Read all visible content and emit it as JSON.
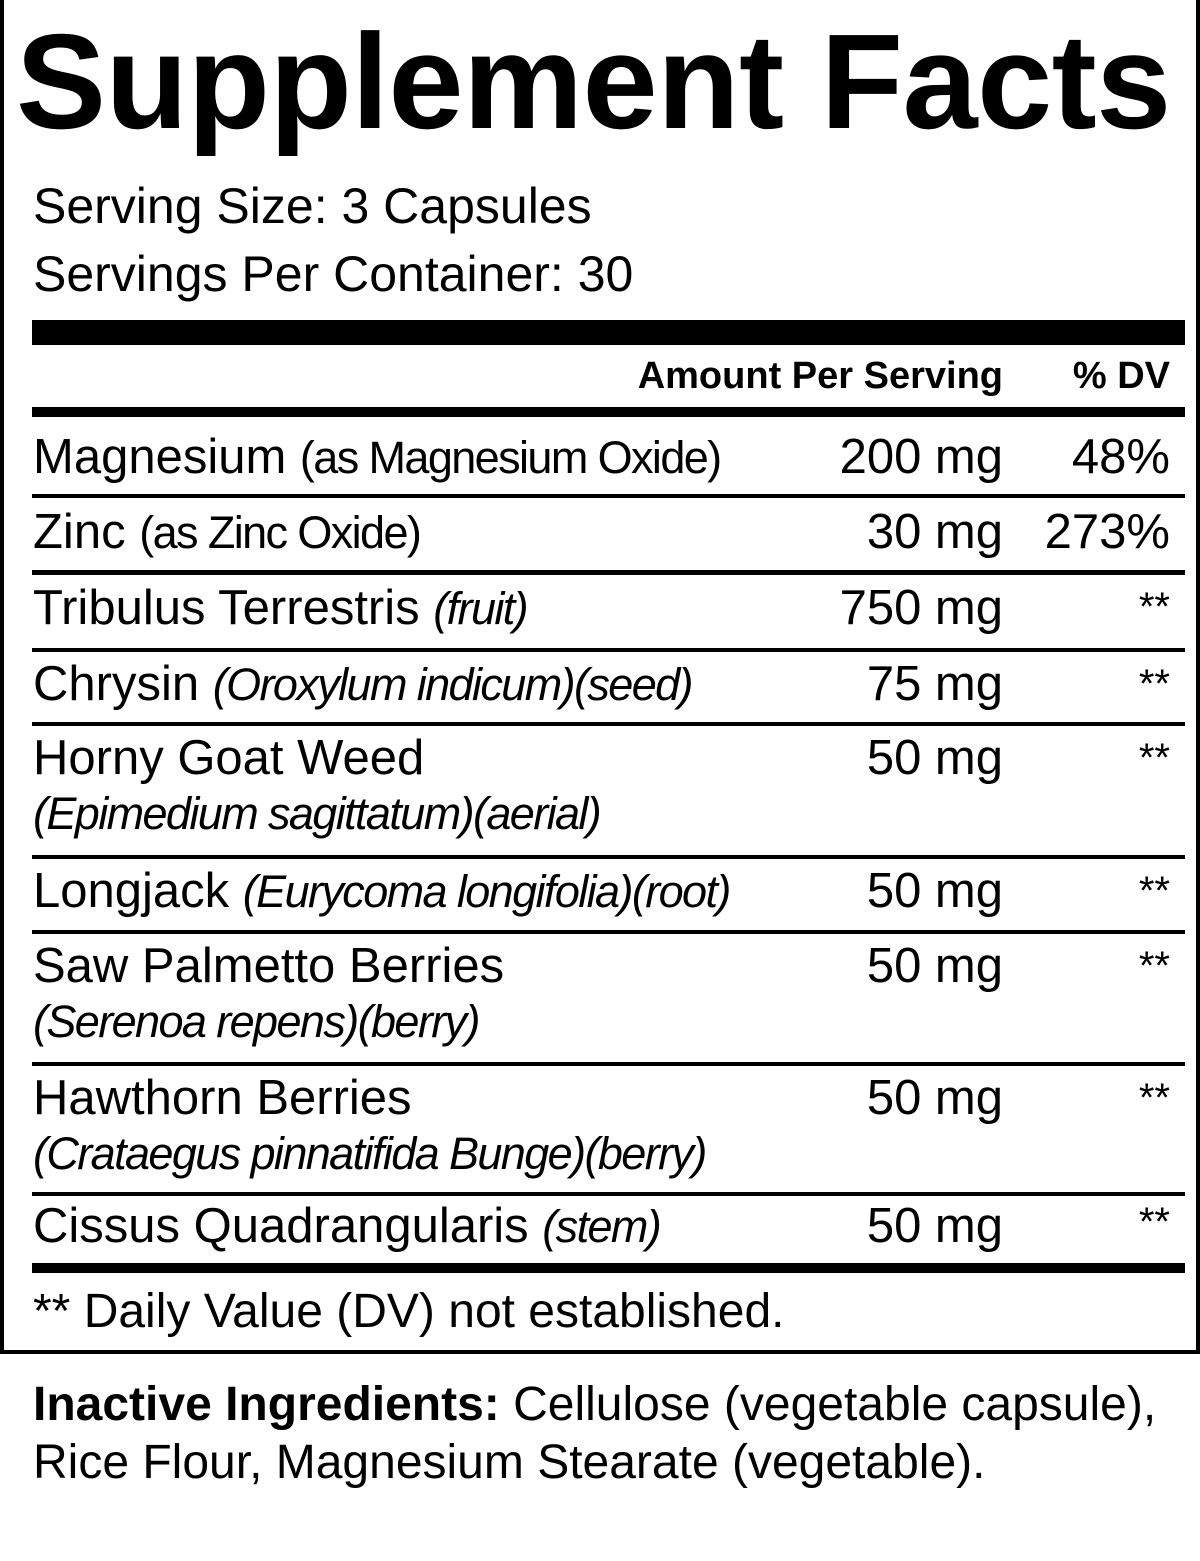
{
  "title": "Supplement Facts",
  "serving_size": "Serving Size: 3 Capsules",
  "servings_per_container": "Servings Per Container: 30",
  "header": {
    "amount": "Amount Per Serving",
    "dv": "% DV"
  },
  "rows": [
    {
      "name": "Magnesium",
      "detail": "(as Magnesium Oxide)",
      "amount": "200 mg",
      "dv": "48%"
    },
    {
      "name": "Zinc",
      "detail": "(as Zinc Oxide)",
      "amount": "30 mg",
      "dv": "273%"
    },
    {
      "name": "Tribulus Terrestris",
      "detail": "(fruit)",
      "amount": "750 mg",
      "dv": "**"
    },
    {
      "name": "Chrysin",
      "detail": "(Oroxylum indicum)(seed)",
      "amount": "75 mg",
      "dv": "**"
    },
    {
      "name": "Horny Goat Weed",
      "detail": "(Epimedium sagittatum)(aerial)",
      "amount": "50 mg",
      "dv": "**"
    },
    {
      "name": "Longjack",
      "detail": "(Eurycoma longifolia)(root)",
      "amount": "50 mg",
      "dv": "**"
    },
    {
      "name": "Saw Palmetto Berries",
      "detail": "(Serenoa repens)(berry)",
      "amount": "50 mg",
      "dv": "**"
    },
    {
      "name": "Hawthorn Berries",
      "detail": "(Crataegus pinnatifida Bunge)(berry)",
      "amount": "50 mg",
      "dv": "**"
    },
    {
      "name": "Cissus Quadrangularis",
      "detail": "(stem)",
      "amount": "50 mg",
      "dv": "**"
    }
  ],
  "footnote": "** Daily Value (DV) not established.",
  "inactive": {
    "label": "Inactive Ingredients:",
    "text": " Cellulose (vegetable capsule), Rice Flour, Magnesium Stearate (vegetable)."
  }
}
